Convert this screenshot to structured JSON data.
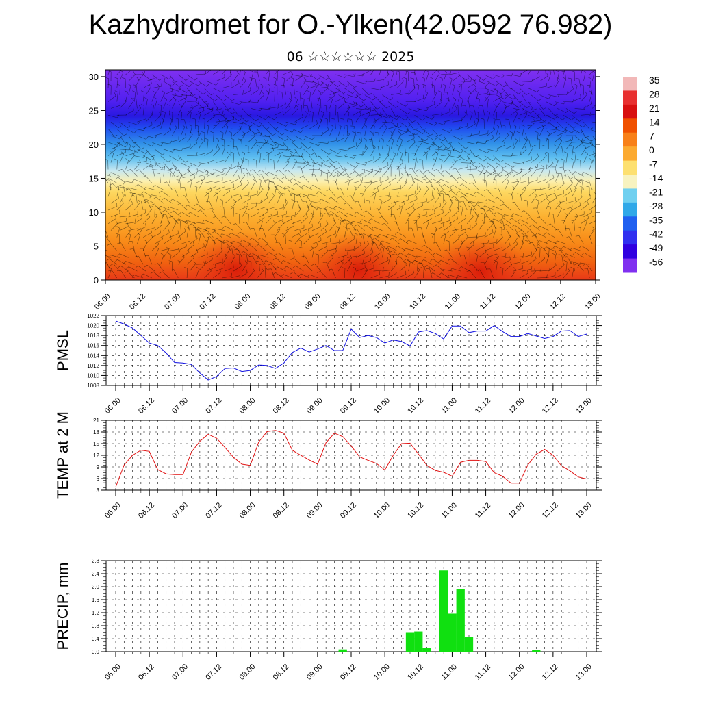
{
  "title": "Kazhydromet for O.-Ylken(42.0592 76.982)",
  "subtitle": "06 ☆☆☆☆☆☆ 2025",
  "chart_data": [
    {
      "type": "heatmap",
      "description_of_field": "temperature cross-section with wind barbs, height 0-30",
      "x_tick_labels": [
        "06.00",
        "06.12",
        "07.00",
        "07.12",
        "08.00",
        "08.12",
        "09.00",
        "09.12",
        "10.00",
        "10.12",
        "11.00",
        "11.12",
        "12.00",
        "12.12",
        "13.00"
      ],
      "y_ticks": [
        0,
        5,
        10,
        15,
        20,
        25,
        30
      ],
      "ylim": [
        0,
        31
      ],
      "colorbar_labels": [
        "35",
        "28",
        "21",
        "14",
        "7",
        "0",
        "-7",
        "-14",
        "-21",
        "-28",
        "-35",
        "-42",
        "-49",
        "-56"
      ],
      "colorbar_colors": [
        "#f2b8b8",
        "#e83030",
        "#d81010",
        "#f05000",
        "#f88018",
        "#fcaa30",
        "#fde070",
        "#f8f3c0",
        "#70d0f0",
        "#30a8e8",
        "#2060f0",
        "#3030f0",
        "#3000e0",
        "#8030f0"
      ]
    },
    {
      "type": "line",
      "ylabel": "PMSL",
      "x_tick_labels": [
        "06.00",
        "06.12",
        "07.00",
        "07.12",
        "08.00",
        "08.12",
        "09.00",
        "09.12",
        "10.00",
        "10.12",
        "11.00",
        "11.12",
        "12.00",
        "12.12",
        "13.00"
      ],
      "ylim": [
        1008,
        1022
      ],
      "y_ticks": [
        1008,
        1010,
        1012,
        1014,
        1016,
        1018,
        1020,
        1022
      ],
      "series_color": "#1010e0",
      "values": [
        1020.9,
        1020.3,
        1019.5,
        1018.0,
        1016.5,
        1016.0,
        1014.5,
        1012.6,
        1012.5,
        1012.2,
        1010.5,
        1009.1,
        1009.8,
        1011.4,
        1011.5,
        1010.8,
        1011.0,
        1012.1,
        1012.0,
        1011.4,
        1012.5,
        1014.6,
        1015.5,
        1014.7,
        1015.3,
        1016.0,
        1015.0,
        1015.0,
        1019.3,
        1017.6,
        1018.0,
        1017.6,
        1016.5,
        1017.1,
        1016.8,
        1015.9,
        1018.7,
        1019.0,
        1018.4,
        1017.3,
        1019.9,
        1019.9,
        1018.6,
        1018.9,
        1018.9,
        1020.0,
        1018.8,
        1017.8,
        1017.8,
        1018.4,
        1017.9,
        1017.4,
        1017.8,
        1018.9,
        1019.0,
        1017.8,
        1018.3
      ]
    },
    {
      "type": "line",
      "ylabel": "TEMP at 2 M",
      "x_tick_labels": [
        "06.00",
        "06.12",
        "07.00",
        "07.12",
        "08.00",
        "08.12",
        "09.00",
        "09.12",
        "10.00",
        "10.12",
        "11.00",
        "11.12",
        "12.00",
        "12.12",
        "13.00"
      ],
      "ylim": [
        3,
        21
      ],
      "y_ticks": [
        3,
        6,
        9,
        12,
        15,
        18,
        21
      ],
      "series_color": "#e01010",
      "values": [
        3.8,
        9.5,
        12.0,
        13.3,
        13.0,
        8.3,
        7.2,
        7.0,
        7.0,
        12.8,
        15.6,
        17.4,
        16.4,
        14.0,
        11.5,
        9.7,
        9.4,
        15.4,
        18.1,
        18.4,
        17.7,
        13.3,
        12.0,
        10.8,
        9.7,
        15.2,
        17.7,
        16.8,
        14.4,
        11.6,
        10.7,
        9.9,
        8.2,
        12.0,
        15.0,
        15.1,
        12.3,
        9.4,
        8.1,
        7.6,
        6.6,
        10.2,
        10.7,
        10.7,
        10.4,
        7.5,
        6.6,
        4.8,
        4.8,
        9.5,
        12.3,
        13.5,
        12.0,
        9.3,
        8.0,
        6.4,
        5.9
      ]
    },
    {
      "type": "bar",
      "ylabel": "PRECIP, mm",
      "x_tick_labels": [
        "06.00",
        "06.12",
        "07.00",
        "07.12",
        "08.00",
        "08.12",
        "09.00",
        "09.12",
        "10.00",
        "10.12",
        "11.00",
        "11.12",
        "12.00",
        "12.12",
        "13.00"
      ],
      "ylim": [
        0,
        2.8
      ],
      "y_ticks": [
        "0.0",
        "0.4",
        "0.8",
        "1.2",
        "1.6",
        "2.0",
        "2.4",
        "2.8"
      ],
      "series_color": "#10e010",
      "bars": [
        {
          "time_step": 27,
          "value": 0.07
        },
        {
          "time_step": 35,
          "value": 0.6
        },
        {
          "time_step": 36,
          "value": 0.62
        },
        {
          "time_step": 37,
          "value": 0.12
        },
        {
          "time_step": 39,
          "value": 2.5
        },
        {
          "time_step": 40,
          "value": 1.17
        },
        {
          "time_step": 41,
          "value": 1.92
        },
        {
          "time_step": 42,
          "value": 0.45
        },
        {
          "time_step": 50,
          "value": 0.06
        }
      ]
    }
  ]
}
